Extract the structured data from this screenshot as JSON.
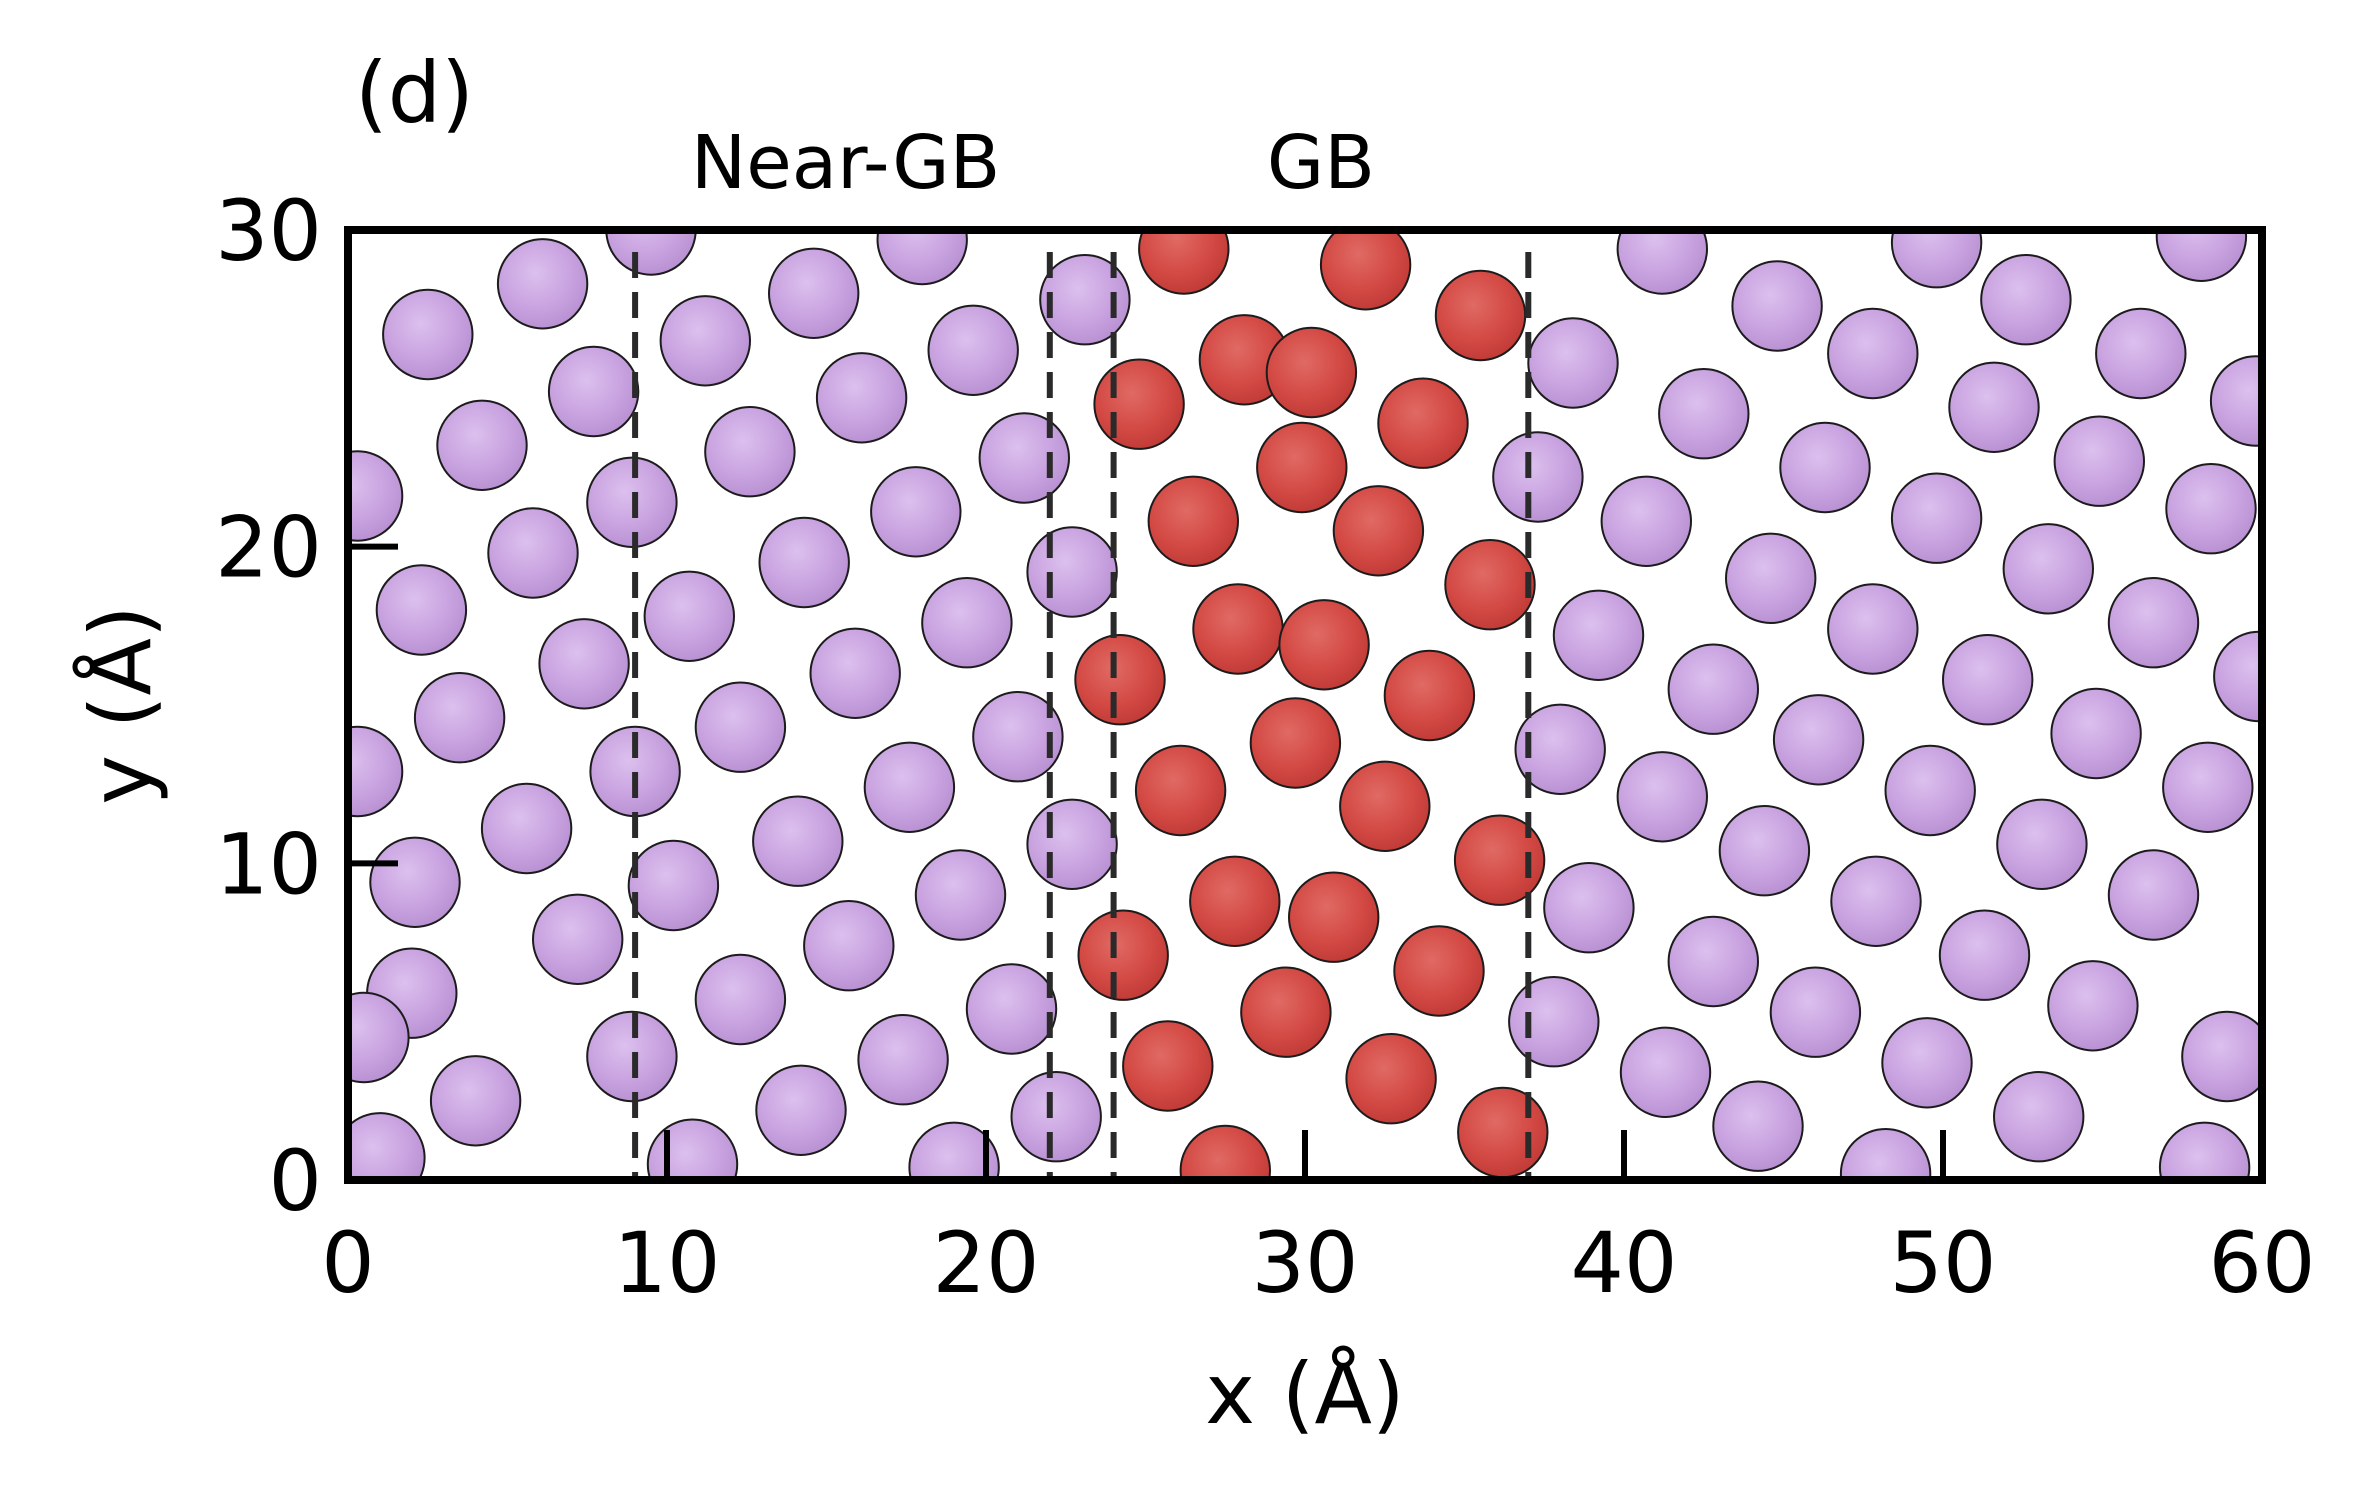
{
  "chart_data": {
    "type": "scatter",
    "panel_label": "(d)",
    "xlabel": "x (Å)",
    "ylabel": "y (Å)",
    "xlim": [
      0,
      60
    ],
    "ylim": [
      0,
      30
    ],
    "xticks": [
      0,
      10,
      20,
      30,
      40,
      50,
      60
    ],
    "yticks": [
      0,
      10,
      20,
      30
    ],
    "grid": false,
    "annotations": [
      {
        "text": "Near-GB",
        "x": 15.6
      },
      {
        "text": "GB",
        "x": 30.5
      }
    ],
    "boundary_lines_x": [
      9.0,
      22.0,
      24.0,
      37.0
    ],
    "atom_radius": 1.4,
    "colors": {
      "bulk": "#c9a3e0",
      "gb": "#d44a45",
      "edge": "#1c1c1c",
      "line": "#2a2a2a"
    },
    "series": [
      {
        "type_key": "bulk",
        "points": [
          [
            1.0,
            0.7
          ],
          [
            4.0,
            2.5
          ],
          [
            2.0,
            5.9
          ],
          [
            0.5,
            4.5
          ],
          [
            5.6,
            11.1
          ],
          [
            3.5,
            14.6
          ],
          [
            2.1,
            9.4
          ],
          [
            0.3,
            12.9
          ],
          [
            2.3,
            18.0
          ],
          [
            5.8,
            19.8
          ],
          [
            4.2,
            23.2
          ],
          [
            2.5,
            26.7
          ],
          [
            6.1,
            28.3
          ],
          [
            0.3,
            21.6
          ],
          [
            7.2,
            7.6
          ],
          [
            7.4,
            16.3
          ],
          [
            7.7,
            24.9
          ],
          [
            8.9,
            3.9
          ],
          [
            9.0,
            12.9
          ],
          [
            8.9,
            21.4
          ],
          [
            9.5,
            30.0
          ],
          [
            10.2,
            9.3
          ],
          [
            10.7,
            17.8
          ],
          [
            11.2,
            26.5
          ],
          [
            10.8,
            0.5
          ],
          [
            12.3,
            14.3
          ],
          [
            12.3,
            5.7
          ],
          [
            12.6,
            23.0
          ],
          [
            14.2,
            2.2
          ],
          [
            14.1,
            10.7
          ],
          [
            14.3,
            19.5
          ],
          [
            14.6,
            28.0
          ],
          [
            15.7,
            7.4
          ],
          [
            15.9,
            16.0
          ],
          [
            16.1,
            24.7
          ],
          [
            17.4,
            3.8
          ],
          [
            17.6,
            12.4
          ],
          [
            17.8,
            21.1
          ],
          [
            18.0,
            29.7
          ],
          [
            19.0,
            0.4
          ],
          [
            19.2,
            9.0
          ],
          [
            19.4,
            17.6
          ],
          [
            19.6,
            26.2
          ],
          [
            20.8,
            5.4
          ],
          [
            21.0,
            14.0
          ],
          [
            21.2,
            22.8
          ],
          [
            22.2,
            2.0
          ],
          [
            22.7,
            10.6
          ],
          [
            22.7,
            19.2
          ],
          [
            23.1,
            27.8
          ],
          [
            37.3,
            22.2
          ],
          [
            37.8,
            5.0
          ],
          [
            38.0,
            13.6
          ],
          [
            38.4,
            25.8
          ],
          [
            38.9,
            8.6
          ],
          [
            39.2,
            17.2
          ],
          [
            40.7,
            20.8
          ],
          [
            41.2,
            29.4
          ],
          [
            41.3,
            3.4
          ],
          [
            41.2,
            12.1
          ],
          [
            42.5,
            24.2
          ],
          [
            42.8,
            6.9
          ],
          [
            42.8,
            15.5
          ],
          [
            44.2,
            1.7
          ],
          [
            44.4,
            10.4
          ],
          [
            44.6,
            19.0
          ],
          [
            44.8,
            27.6
          ],
          [
            46.0,
            5.3
          ],
          [
            46.1,
            13.9
          ],
          [
            46.3,
            22.5
          ],
          [
            47.9,
            8.8
          ],
          [
            47.8,
            17.4
          ],
          [
            47.8,
            26.1
          ],
          [
            48.2,
            0.2
          ],
          [
            49.5,
            3.7
          ],
          [
            49.6,
            12.3
          ],
          [
            49.8,
            20.9
          ],
          [
            49.8,
            29.6
          ],
          [
            51.3,
            7.1
          ],
          [
            51.4,
            15.8
          ],
          [
            51.6,
            24.4
          ],
          [
            52.6,
            27.8
          ],
          [
            53.0,
            2.0
          ],
          [
            53.1,
            10.6
          ],
          [
            53.3,
            19.3
          ],
          [
            54.7,
            5.5
          ],
          [
            54.8,
            14.1
          ],
          [
            54.9,
            22.7
          ],
          [
            56.2,
            26.1
          ],
          [
            56.6,
            9.0
          ],
          [
            56.6,
            17.6
          ],
          [
            58.1,
            29.8
          ],
          [
            58.2,
            0.4
          ],
          [
            58.3,
            12.4
          ],
          [
            58.4,
            21.2
          ],
          [
            58.9,
            3.9
          ],
          [
            59.8,
            24.6
          ],
          [
            59.9,
            15.9
          ]
        ]
      },
      {
        "type_key": "gb",
        "points": [
          [
            26.2,
            29.4
          ],
          [
            31.9,
            28.9
          ],
          [
            35.5,
            27.3
          ],
          [
            28.1,
            25.9
          ],
          [
            30.2,
            25.5
          ],
          [
            24.8,
            24.5
          ],
          [
            33.7,
            23.9
          ],
          [
            29.9,
            22.5
          ],
          [
            26.5,
            20.8
          ],
          [
            32.3,
            20.5
          ],
          [
            35.8,
            18.8
          ],
          [
            27.9,
            17.4
          ],
          [
            30.6,
            16.9
          ],
          [
            24.2,
            15.8
          ],
          [
            33.9,
            15.3
          ],
          [
            29.7,
            13.8
          ],
          [
            26.1,
            12.3
          ],
          [
            32.5,
            11.8
          ],
          [
            36.1,
            10.1
          ],
          [
            27.8,
            8.8
          ],
          [
            30.9,
            8.3
          ],
          [
            24.3,
            7.1
          ],
          [
            34.2,
            6.6
          ],
          [
            29.4,
            5.3
          ],
          [
            25.7,
            3.6
          ],
          [
            32.7,
            3.2
          ],
          [
            27.5,
            0.3
          ],
          [
            36.2,
            1.5
          ]
        ]
      }
    ]
  }
}
